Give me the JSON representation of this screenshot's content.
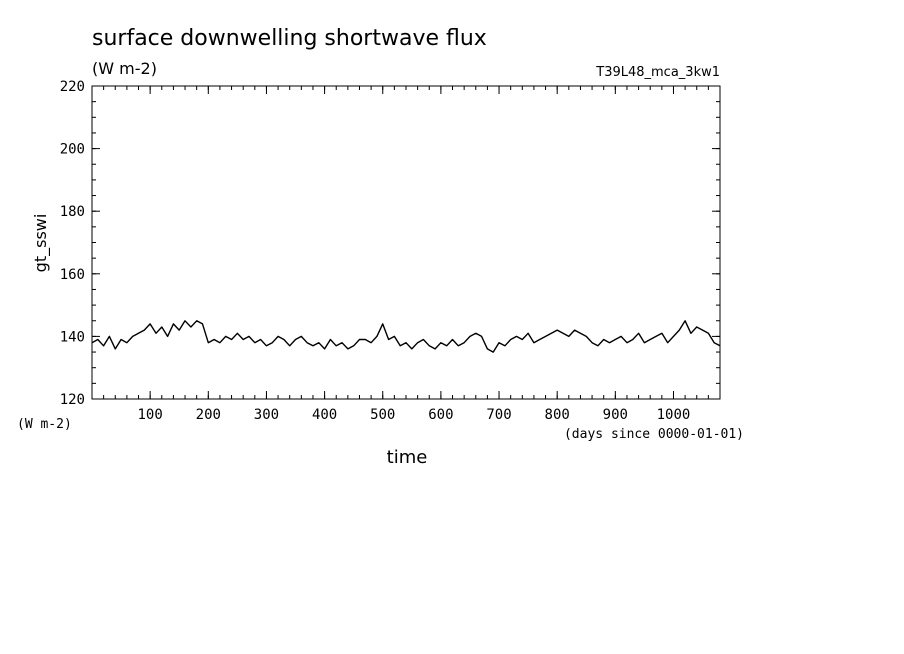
{
  "chart_data": {
    "type": "line",
    "title": "surface downwelling shortwave flux",
    "subtitle": "(W m-2)",
    "run_label": "T39L48_mca_3kw1",
    "ylabel": "gt_sswi",
    "y_unit_label": "(W m-2)",
    "xlabel": "time",
    "x_unit_label": "(days since 0000-01-01)",
    "xlim": [
      0,
      1080
    ],
    "ylim": [
      120,
      220
    ],
    "x_ticks": [
      100,
      200,
      300,
      400,
      500,
      600,
      700,
      800,
      900,
      1000
    ],
    "y_ticks": [
      120,
      140,
      160,
      180,
      200,
      220
    ],
    "grid": false,
    "line_color": "#000000",
    "series": [
      {
        "x": [
          0,
          10,
          20,
          30,
          40,
          50,
          60,
          70,
          80,
          90,
          100,
          110,
          120,
          130,
          140,
          150,
          160,
          170,
          180,
          190,
          200,
          210,
          220,
          230,
          240,
          250,
          260,
          270,
          280,
          290,
          300,
          310,
          320,
          330,
          340,
          350,
          360,
          370,
          380,
          390,
          400,
          410,
          420,
          430,
          440,
          450,
          460,
          470,
          480,
          490,
          500,
          510,
          520,
          530,
          540,
          550,
          560,
          570,
          580,
          590,
          600,
          610,
          620,
          630,
          640,
          650,
          660,
          670,
          680,
          690,
          700,
          710,
          720,
          730,
          740,
          750,
          760,
          770,
          780,
          790,
          800,
          810,
          820,
          830,
          840,
          850,
          860,
          870,
          880,
          890,
          900,
          910,
          920,
          930,
          940,
          950,
          960,
          970,
          980,
          990,
          1000,
          1010,
          1020,
          1030,
          1040,
          1050,
          1060,
          1070,
          1080
        ],
        "values": [
          138,
          139,
          137,
          140,
          136,
          139,
          138,
          140,
          141,
          142,
          144,
          141,
          143,
          140,
          144,
          142,
          145,
          143,
          145,
          144,
          138,
          139,
          138,
          140,
          139,
          141,
          139,
          140,
          138,
          139,
          137,
          138,
          140,
          139,
          137,
          139,
          140,
          138,
          137,
          138,
          136,
          139,
          137,
          138,
          136,
          137,
          139,
          139,
          138,
          140,
          144,
          139,
          140,
          137,
          138,
          136,
          138,
          139,
          137,
          136,
          138,
          137,
          139,
          137,
          138,
          140,
          141,
          140,
          136,
          135,
          138,
          137,
          139,
          140,
          139,
          141,
          138,
          139,
          140,
          141,
          142,
          141,
          140,
          142,
          141,
          140,
          138,
          137,
          139,
          138,
          139,
          140,
          138,
          139,
          141,
          138,
          139,
          140,
          141,
          138,
          140,
          142,
          145,
          141,
          143,
          142,
          141,
          138,
          137
        ]
      }
    ]
  }
}
